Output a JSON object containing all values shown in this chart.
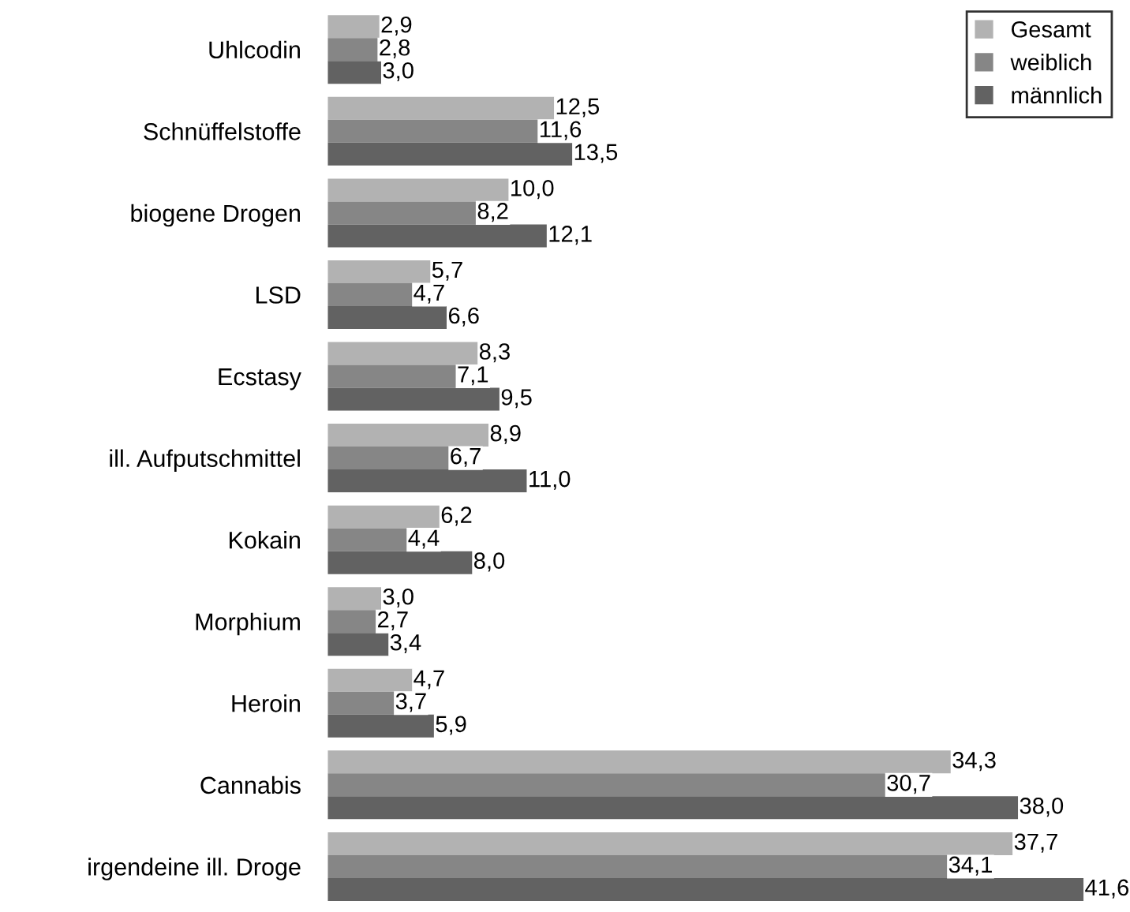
{
  "chart_data": {
    "type": "bar",
    "orientation": "horizontal",
    "categories": [
      "Uhlcodin",
      "Schnüffelstoffe",
      "biogene Drogen",
      "LSD",
      "Ecstasy",
      "ill. Aufputschmittel",
      "Kokain",
      "Morphium",
      "Heroin",
      "Cannabis",
      "irgendeine ill. Droge"
    ],
    "series": [
      {
        "name": "Gesamt",
        "color": "#b2b2b2",
        "values": [
          2.9,
          12.5,
          10.0,
          5.7,
          8.3,
          8.9,
          6.2,
          3.0,
          4.7,
          34.3,
          37.7
        ],
        "value_labels": [
          "2,9",
          "12,5",
          "10,0",
          "5,7",
          "8,3",
          "8,9",
          "6,2",
          "3,0",
          "4,7",
          "34,3",
          "37,7"
        ]
      },
      {
        "name": "weiblich",
        "color": "#868686",
        "values": [
          2.8,
          11.6,
          8.2,
          4.7,
          7.1,
          6.7,
          4.4,
          2.7,
          3.7,
          30.7,
          34.1
        ],
        "value_labels": [
          "2,8",
          "11,6",
          "8,2",
          "4,7",
          "7,1",
          "6,7",
          "4,4",
          "2,7",
          "3,7",
          "30,7",
          "34,1"
        ]
      },
      {
        "name": "männlich",
        "color": "#626262",
        "values": [
          3.0,
          13.5,
          12.1,
          6.6,
          9.5,
          11.0,
          8.0,
          3.4,
          5.9,
          38.0,
          41.6
        ],
        "value_labels": [
          "3,0",
          "13,5",
          "12,1",
          "6,6",
          "9,5",
          "11,0",
          "8,0",
          "3,4",
          "5,9",
          "38,0",
          "41,6"
        ]
      }
    ],
    "legend": "top right",
    "grid": false
  }
}
